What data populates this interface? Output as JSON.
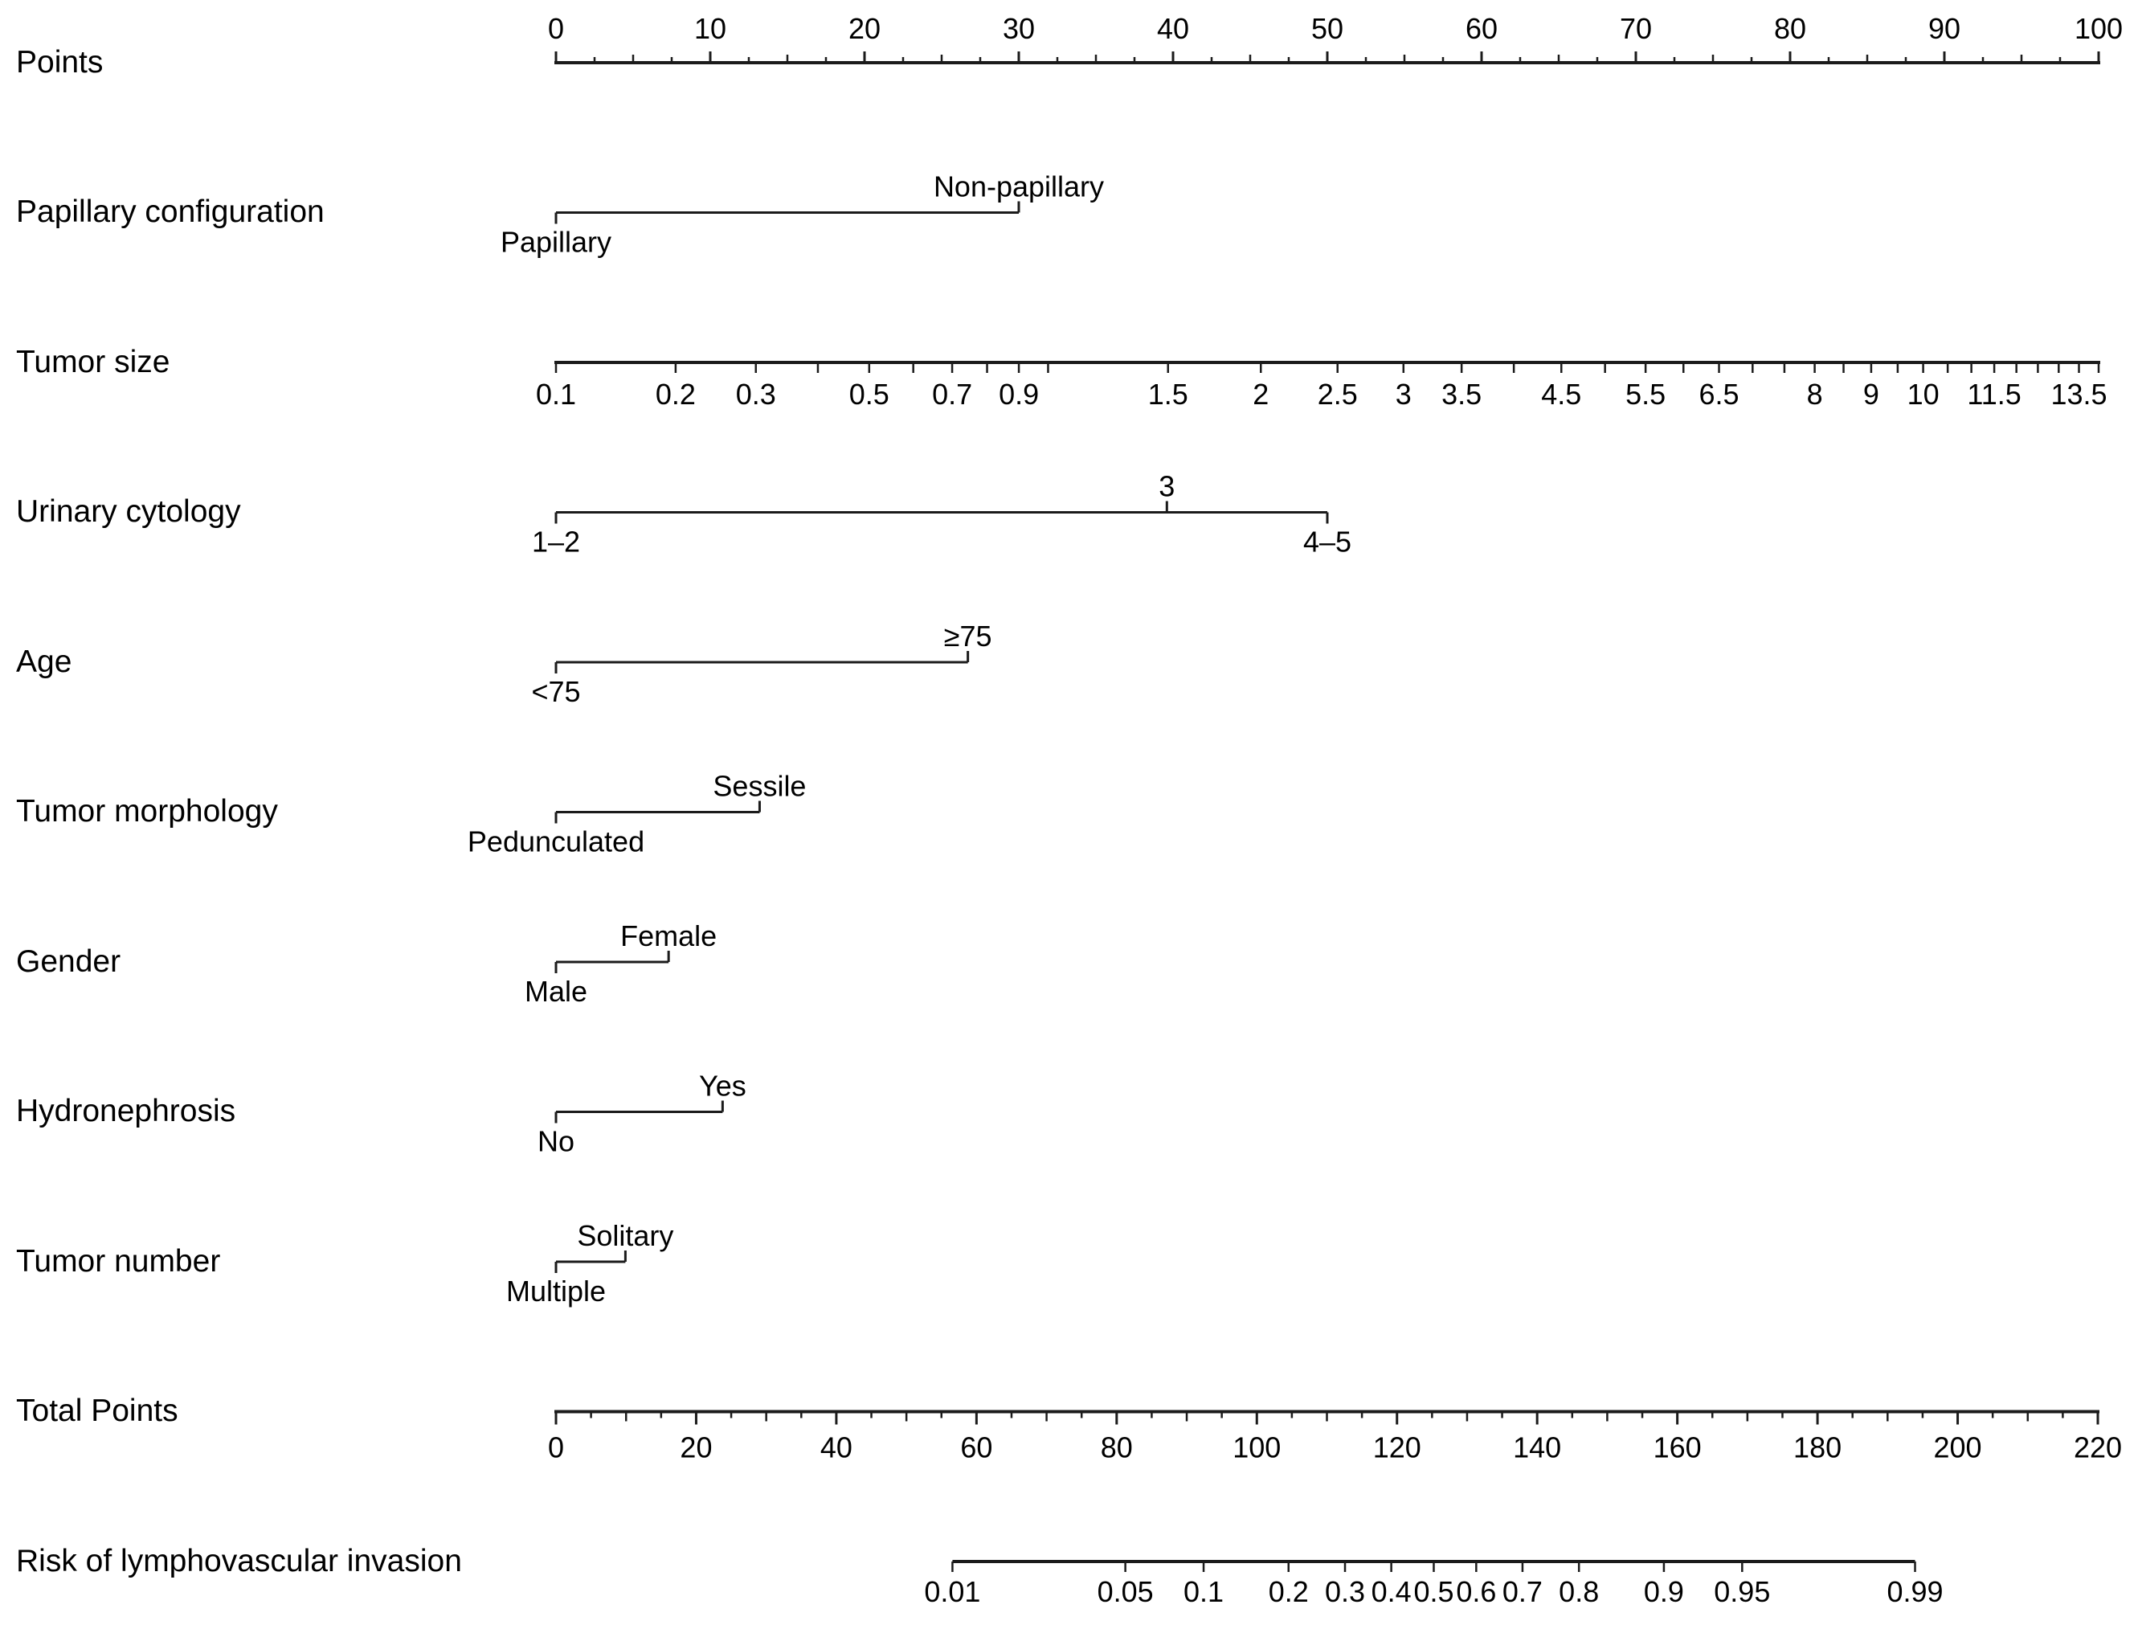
{
  "style": {
    "background": "#ffffff",
    "line_color": "#1b1b1b",
    "text_color": "#000000"
  },
  "chart_data": {
    "type": "nomogram",
    "rows_order": [
      "points",
      "papillary_configuration",
      "tumor_size",
      "urinary_cytology",
      "age",
      "tumor_morphology",
      "gender",
      "hydronephrosis",
      "tumor_number",
      "total_points",
      "risk"
    ],
    "points_axis": {
      "label": "Points",
      "range": [
        0,
        100
      ],
      "major_tick_step": 10,
      "mid_tick_step": 5,
      "minor_tick_step": 2.5,
      "tick_labels": [
        "0",
        "10",
        "20",
        "30",
        "40",
        "50",
        "60",
        "70",
        "80",
        "90",
        "100"
      ],
      "labels_position": "above",
      "ticks_direction": "up"
    },
    "predictors": [
      {
        "id": "papillary_configuration",
        "name": "Papillary configuration",
        "categories": [
          {
            "label": "Papillary",
            "points": 0,
            "side": "below"
          },
          {
            "label": "Non-papillary",
            "points": 30.0,
            "side": "above"
          }
        ]
      },
      {
        "id": "tumor_size",
        "name": "Tumor size",
        "scale": "fourth_root",
        "value_range": [
          0.1,
          14
        ],
        "points_range": [
          0,
          100
        ],
        "tick_step_below_1": 0.1,
        "tick_step_above_1": 0.5,
        "labeled_ticks": [
          "0.1",
          "0.2",
          "0.3",
          "0.5",
          "0.7",
          "0.9",
          "1.5",
          "2",
          "2.5",
          "3",
          "3.5",
          "4.5",
          "5.5",
          "6.5",
          "8",
          "9",
          "10",
          "11.5",
          "13.5"
        ],
        "labels_position": "below",
        "ticks_direction": "down"
      },
      {
        "id": "urinary_cytology",
        "name": "Urinary cytology",
        "categories": [
          {
            "label": "1–2",
            "points": 0,
            "side": "below"
          },
          {
            "label": "3",
            "points": 39.6,
            "side": "above"
          },
          {
            "label": "4–5",
            "points": 50.0,
            "side": "below"
          }
        ]
      },
      {
        "id": "age",
        "name": "Age",
        "categories": [
          {
            "label": "<75",
            "points": 0,
            "side": "below"
          },
          {
            "label": "≥75",
            "points": 26.7,
            "side": "above"
          }
        ]
      },
      {
        "id": "tumor_morphology",
        "name": "Tumor morphology",
        "categories": [
          {
            "label": "Pedunculated",
            "points": 0,
            "side": "below"
          },
          {
            "label": "Sessile",
            "points": 13.2,
            "side": "above"
          }
        ]
      },
      {
        "id": "gender",
        "name": "Gender",
        "categories": [
          {
            "label": "Male",
            "points": 0,
            "side": "below"
          },
          {
            "label": "Female",
            "points": 7.3,
            "side": "above"
          }
        ]
      },
      {
        "id": "hydronephrosis",
        "name": "Hydronephrosis",
        "categories": [
          {
            "label": "No",
            "points": 0,
            "side": "below"
          },
          {
            "label": "Yes",
            "points": 10.8,
            "side": "above"
          }
        ]
      },
      {
        "id": "tumor_number",
        "name": "Tumor number",
        "categories": [
          {
            "label": "Multiple",
            "points": 0,
            "side": "below"
          },
          {
            "label": "Solitary",
            "points": 4.5,
            "side": "above"
          }
        ]
      }
    ],
    "total_points_axis": {
      "label": "Total Points",
      "range": [
        0,
        220
      ],
      "major_tick_step": 20,
      "mid_tick_step": 10,
      "minor_tick_step": 5,
      "tick_labels": [
        "0",
        "20",
        "40",
        "60",
        "80",
        "100",
        "120",
        "140",
        "160",
        "180",
        "200",
        "220"
      ],
      "labels_position": "below",
      "ticks_direction": "down"
    },
    "risk_axis": {
      "label": "Risk of lymphovascular invasion",
      "scale": "logit",
      "ticks": [
        0.01,
        0.05,
        0.1,
        0.2,
        0.3,
        0.4,
        0.5,
        0.6,
        0.7,
        0.8,
        0.9,
        0.95,
        0.99
      ],
      "tick_labels": [
        "0.01",
        "0.05",
        "0.1",
        "0.2",
        "0.3",
        "0.4",
        "0.5",
        "0.6",
        "0.7",
        "0.8",
        "0.9",
        "0.95",
        "0.99"
      ],
      "start_points": 25.7,
      "end_points": 88.1,
      "labels_position": "below",
      "ticks_direction": "down"
    }
  }
}
